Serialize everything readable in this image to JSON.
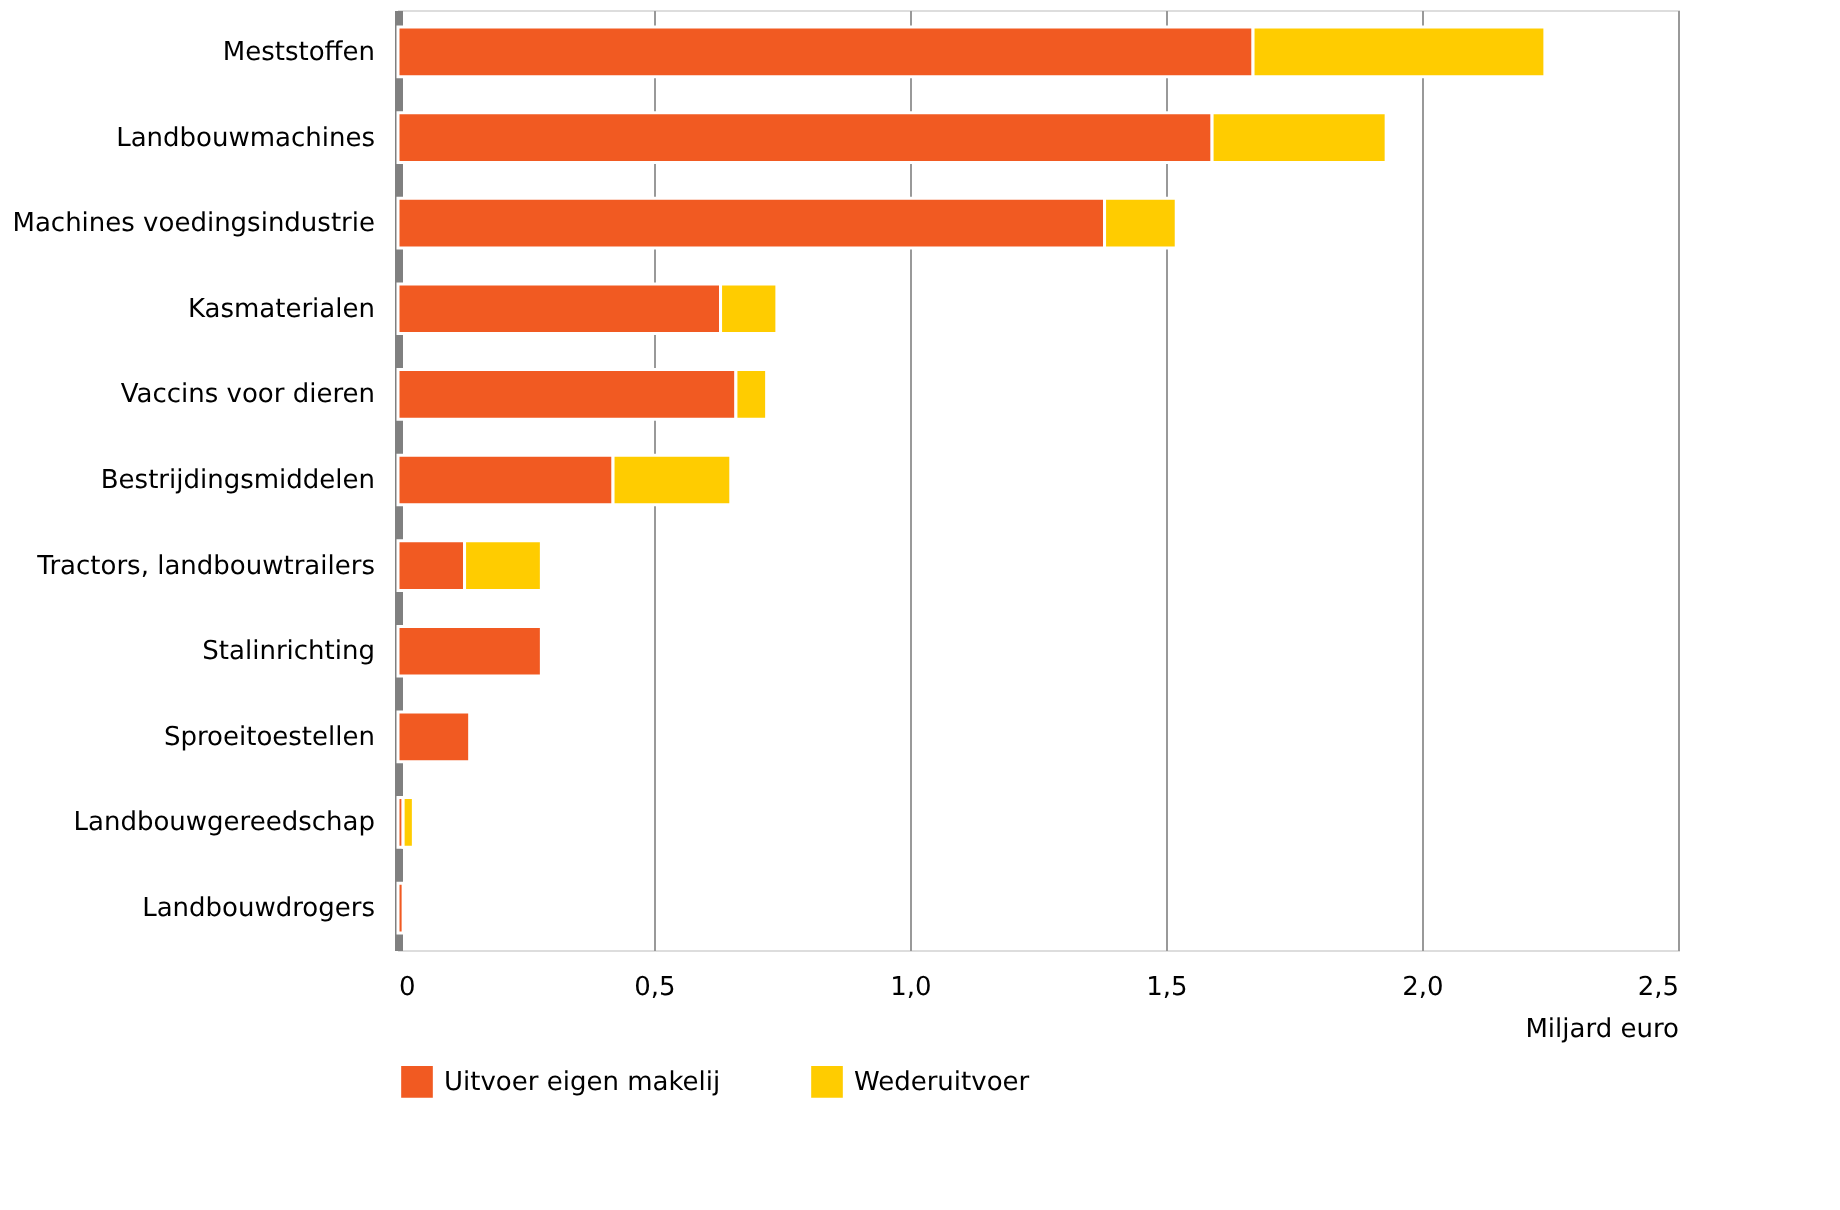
{
  "chart_data": {
    "type": "bar",
    "orientation": "horizontal",
    "stacked": true,
    "categories": [
      "Meststoffen",
      "Landbouwmachines",
      "Machines voedingsindustrie",
      "Kasmaterialen",
      "Vaccins voor dieren",
      "Bestrijdingsmiddelen",
      "Tractors, landbouwtrailers",
      "Stalinrichting",
      "Sproeitoestellen",
      "Landbouwgereedschap",
      "Landbouwdrogers"
    ],
    "series": [
      {
        "name": "Uitvoer eigen makelij",
        "color": "#f15a22",
        "values": [
          1.67,
          1.59,
          1.38,
          0.63,
          0.66,
          0.42,
          0.13,
          0.28,
          0.14,
          0.01,
          0.01
        ]
      },
      {
        "name": "Wederuitvoer",
        "color": "#ffcc00",
        "values": [
          0.57,
          0.34,
          0.14,
          0.11,
          0.06,
          0.23,
          0.15,
          null,
          null,
          0.02,
          null
        ]
      }
    ],
    "xlabel": "Miljard euro",
    "xlim": [
      0,
      2.5
    ],
    "xticks": [
      0,
      {
        "value": 0.5,
        "label": "0,5"
      },
      {
        "value": 1,
        "label": "1,0"
      },
      {
        "value": 1.5,
        "label": "1,5"
      },
      {
        "value": 2,
        "label": "2,0"
      },
      {
        "value": 2.5,
        "label": "2,5"
      }
    ],
    "grid": "x",
    "legend": "bottom left"
  }
}
